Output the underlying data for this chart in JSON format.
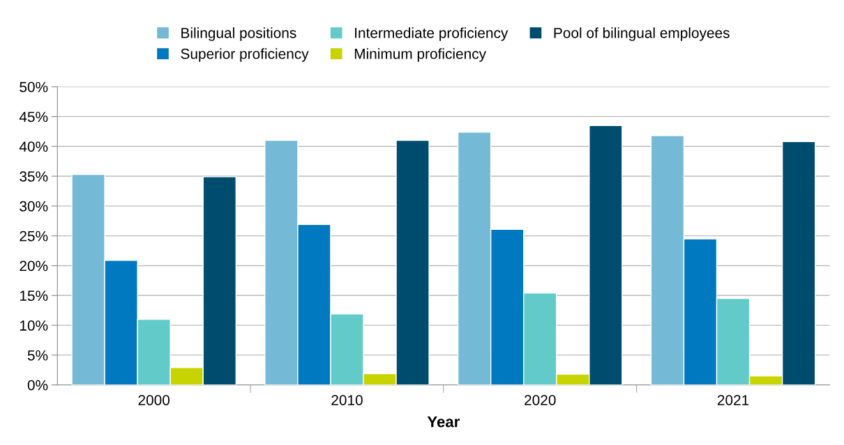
{
  "chart_data": {
    "type": "bar",
    "xlabel": "Year",
    "categories": [
      "2000",
      "2010",
      "2020",
      "2021"
    ],
    "series": [
      {
        "name": "Bilingual positions",
        "color": "#74b9d6",
        "values": [
          35.3,
          41.0,
          42.4,
          41.8
        ]
      },
      {
        "name": "Superior proficiency",
        "color": "#0079c1",
        "values": [
          20.9,
          26.9,
          26.1,
          24.5
        ]
      },
      {
        "name": "Intermediate proficiency",
        "color": "#62cbc9",
        "values": [
          11.0,
          11.9,
          15.4,
          14.5
        ]
      },
      {
        "name": "Minimum proficiency",
        "color": "#c8d400",
        "values": [
          2.9,
          1.9,
          1.8,
          1.5
        ]
      },
      {
        "name": "Pool of bilingual employees",
        "color": "#004c6e",
        "values": [
          34.9,
          41.0,
          43.5,
          40.8
        ]
      }
    ],
    "ylim": [
      0,
      50
    ],
    "yticks": [
      {
        "value": 0,
        "label": "0%"
      },
      {
        "value": 5,
        "label": "5%"
      },
      {
        "value": 10,
        "label": "10%"
      },
      {
        "value": 15,
        "label": "15%"
      },
      {
        "value": 20,
        "label": "20%"
      },
      {
        "value": 25,
        "label": "25%"
      },
      {
        "value": 30,
        "label": "30%"
      },
      {
        "value": 35,
        "label": "35%"
      },
      {
        "value": 40,
        "label": "40%"
      },
      {
        "value": 45,
        "label": "45%"
      },
      {
        "value": 50,
        "label": "50%"
      }
    ],
    "grid": "y",
    "legend": "top"
  }
}
